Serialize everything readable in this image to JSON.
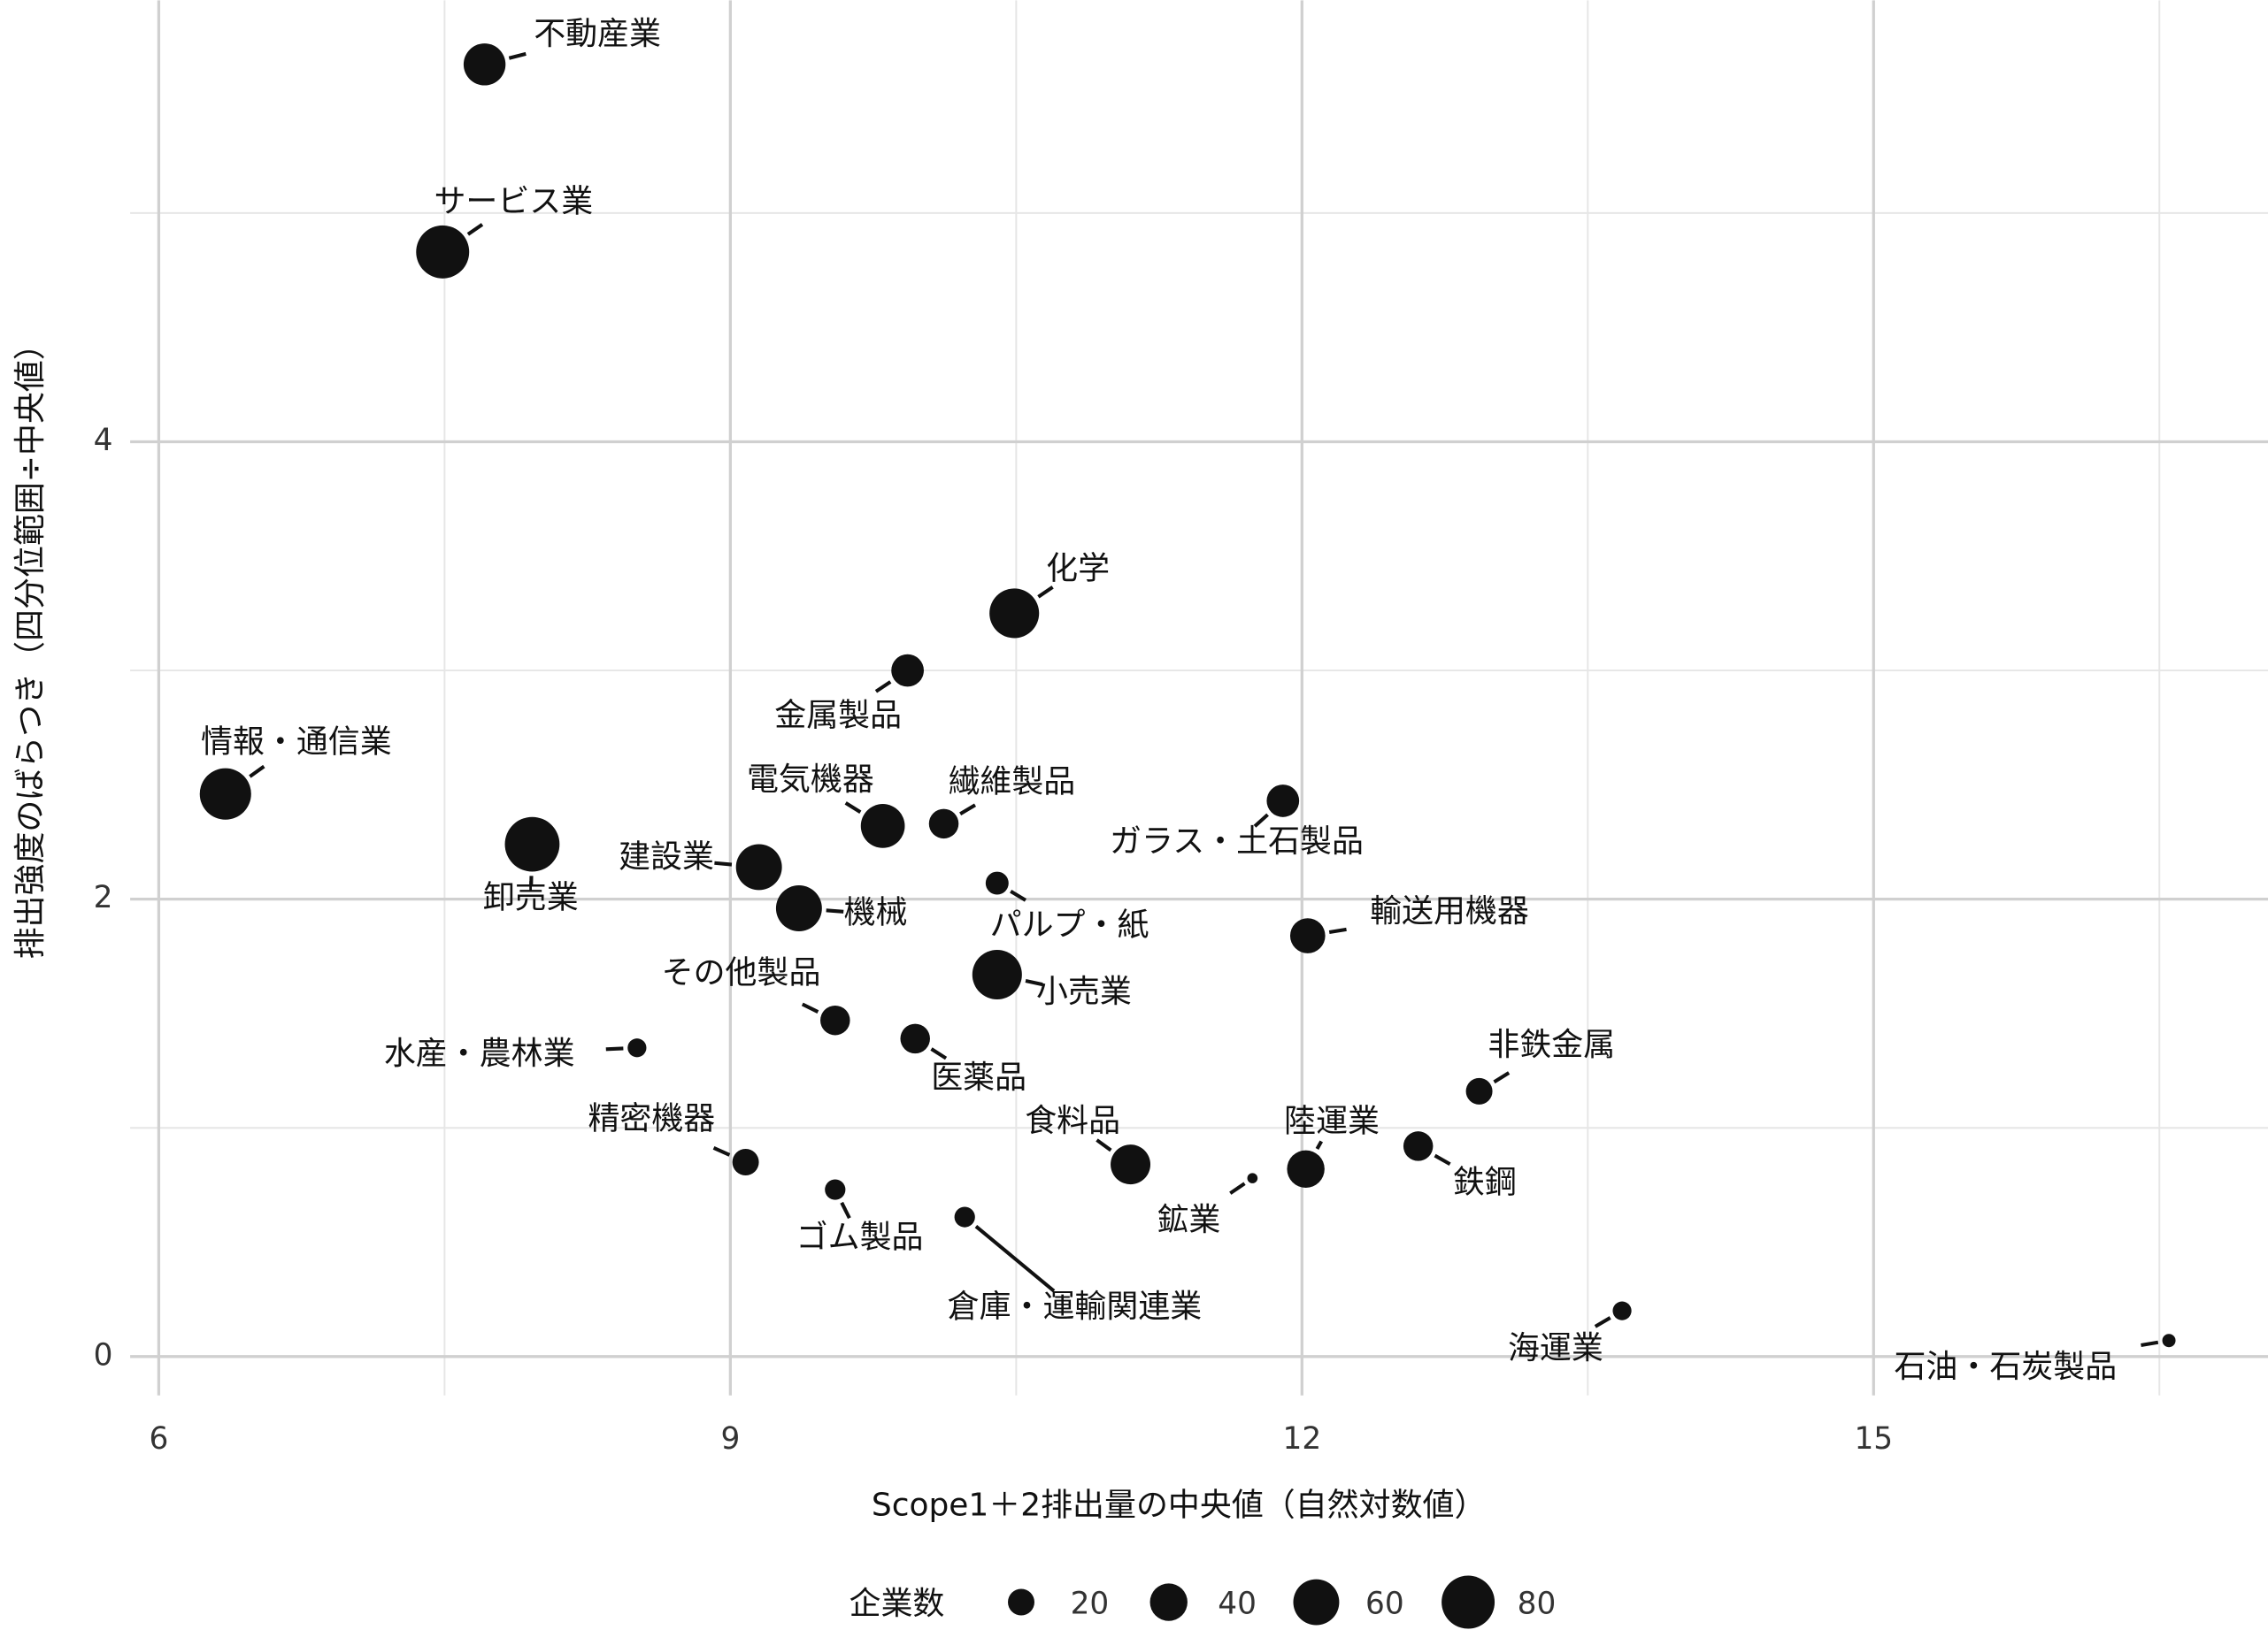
{
  "chart_data": {
    "type": "scatter",
    "x_label": "Scope1＋2排出量の中央値（自然対数値）",
    "y_label": "排出強度のばらつき（四分位範囲÷中央値）",
    "labels": [
      "不動産業",
      "サービス業",
      "化学",
      "金属製品",
      "情報・通信業",
      "卸売業",
      "電気機器",
      "繊維製品",
      "ガラス・土石製品",
      "建設業",
      "機械",
      "パルプ・紙",
      "輸送用機器",
      "小売業",
      "その他製品",
      "医薬品",
      "水産・農林業",
      "非鉄金属",
      "精密機器",
      "食料品",
      "鉄鋼",
      "陸運業",
      "鉱業",
      "ゴム製品",
      "倉庫・運輸関連業",
      "海運業",
      "石油・石炭製品"
    ],
    "x": [
      7.71,
      7.49,
      10.49,
      9.93,
      6.35,
      7.96,
      9.8,
      10.12,
      11.9,
      9.15,
      9.36,
      10.4,
      12.03,
      10.4,
      9.55,
      9.97,
      8.51,
      12.93,
      9.08,
      11.1,
      12.61,
      12.02,
      11.74,
      9.55,
      10.23,
      13.68,
      16.55
    ],
    "values": [
      5.65,
      4.83,
      3.25,
      3.0,
      2.46,
      2.24,
      2.32,
      2.33,
      2.43,
      2.14,
      1.96,
      2.07,
      1.84,
      1.67,
      1.47,
      1.39,
      1.35,
      1.16,
      0.85,
      0.84,
      0.92,
      0.82,
      0.78,
      0.73,
      0.61,
      0.2,
      0.07
    ],
    "sizes": [
      50,
      80,
      70,
      30,
      75,
      85,
      55,
      25,
      30,
      60,
      60,
      15,
      35,
      70,
      25,
      25,
      10,
      20,
      20,
      45,
      25,
      40,
      3,
      12,
      12,
      10,
      5
    ],
    "color": "#111111",
    "xlim": [
      5.85,
      17.07
    ],
    "ylim": [
      -0.17,
      5.93
    ],
    "xticks": [
      6,
      9,
      12,
      15
    ],
    "yticks": [
      0,
      2,
      4
    ],
    "x_minor_grid": [
      7.5,
      10.5,
      13.5,
      16.5
    ],
    "y_minor_grid": [
      1,
      3,
      5
    ],
    "grid": true,
    "size_legend": {
      "title": "企業数",
      "values": [
        20,
        40,
        60,
        80
      ]
    }
  }
}
